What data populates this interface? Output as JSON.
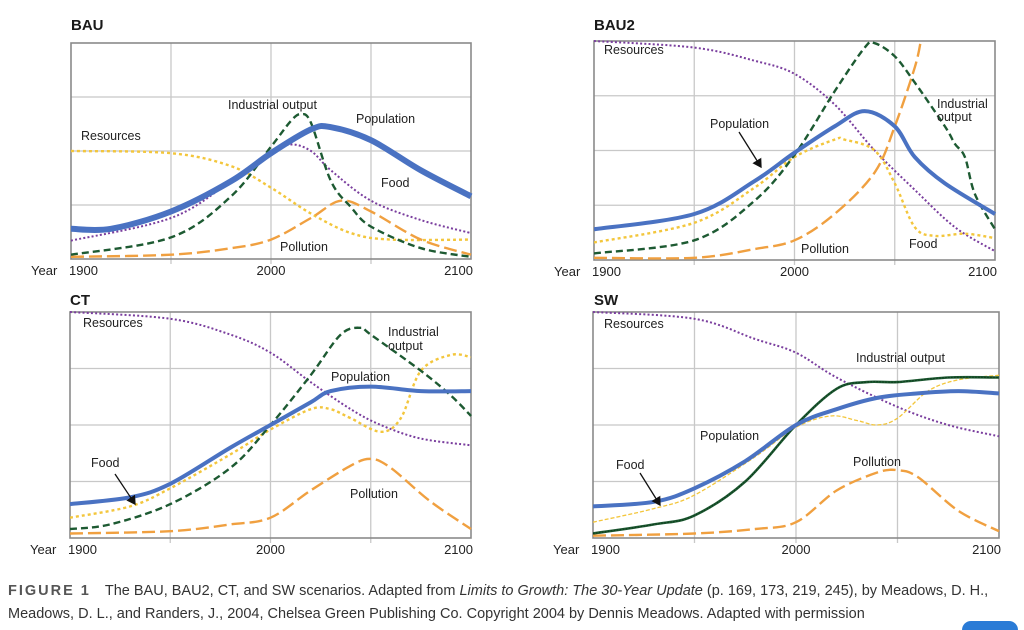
{
  "colors": {
    "population": "#4a72c2",
    "industrial_output": "#1d5a32",
    "food": "#f3c63c",
    "resources": "#7a3e9e",
    "pollution": "#f0a040",
    "grid": "#c8c8c8",
    "frame": "#8a8a8a"
  },
  "axis": {
    "year_label": "Year",
    "x_ticks": [
      "1900",
      "2000",
      "2100"
    ]
  },
  "chart_data": [
    {
      "type": "line",
      "title": "BAU",
      "xlabel": "Year",
      "ylabel": "",
      "xlim": [
        1900,
        2100
      ],
      "ylim": [
        0,
        1
      ],
      "grid": true,
      "x_ticks": [
        1900,
        2000,
        2100
      ],
      "annotations": {
        "industrial": "Industrial output",
        "population": "Population",
        "resources": "Resources",
        "food": "Food",
        "pollution": "Pollution"
      },
      "series": [
        {
          "name": "population",
          "x": [
            1900,
            1920,
            1950,
            1980,
            2000,
            2020,
            2030,
            2050,
            2075,
            2100
          ],
          "y": [
            0.14,
            0.14,
            0.22,
            0.36,
            0.49,
            0.6,
            0.61,
            0.55,
            0.41,
            0.29
          ]
        },
        {
          "name": "resources",
          "x": [
            1900,
            1950,
            1980,
            2000,
            2010,
            2020,
            2030,
            2050,
            2075,
            2100
          ],
          "y": [
            0.085,
            0.19,
            0.36,
            0.49,
            0.53,
            0.5,
            0.41,
            0.27,
            0.18,
            0.12
          ]
        },
        {
          "name": "food",
          "x": [
            1900,
            1950,
            1980,
            2000,
            2020,
            2040,
            2060,
            2100
          ],
          "y": [
            0.5,
            0.49,
            0.43,
            0.33,
            0.21,
            0.12,
            0.09,
            0.09
          ]
        },
        {
          "name": "industrial_output",
          "x": [
            1900,
            1950,
            1980,
            2000,
            2010,
            2015,
            2020,
            2030,
            2040,
            2050,
            2075,
            2100
          ],
          "y": [
            0.02,
            0.1,
            0.29,
            0.52,
            0.64,
            0.67,
            0.63,
            0.36,
            0.24,
            0.15,
            0.05,
            0.01
          ]
        },
        {
          "name": "pollution",
          "x": [
            1900,
            1950,
            1980,
            2000,
            2020,
            2035,
            2050,
            2075,
            2100
          ],
          "y": [
            0.01,
            0.02,
            0.05,
            0.09,
            0.19,
            0.27,
            0.22,
            0.09,
            0.02
          ]
        }
      ]
    },
    {
      "type": "line",
      "title": "BAU2",
      "xlabel": "Year",
      "ylabel": "",
      "xlim": [
        1900,
        2100
      ],
      "ylim": [
        0,
        1
      ],
      "grid": true,
      "x_ticks": [
        1900,
        2000,
        2100
      ],
      "annotations": {
        "resources": "Resources",
        "population": "Population",
        "industrial_1": "Industrial",
        "industrial_2": "output",
        "pollution": "Pollution",
        "food": "Food"
      },
      "series": [
        {
          "name": "population",
          "x": [
            1900,
            1950,
            1980,
            2000,
            2020,
            2035,
            2050,
            2060,
            2075,
            2100
          ],
          "y": [
            0.14,
            0.21,
            0.36,
            0.49,
            0.61,
            0.68,
            0.61,
            0.47,
            0.35,
            0.21
          ]
        },
        {
          "name": "resources",
          "x": [
            1900,
            1950,
            1980,
            2000,
            2020,
            2040,
            2060,
            2080,
            2100
          ],
          "y": [
            1.0,
            0.97,
            0.91,
            0.85,
            0.71,
            0.5,
            0.32,
            0.15,
            0.04
          ]
        },
        {
          "name": "food",
          "x": [
            1900,
            1950,
            1980,
            2000,
            2020,
            2025,
            2040,
            2050,
            2060,
            2070,
            2085,
            2100
          ],
          "y": [
            0.08,
            0.17,
            0.33,
            0.47,
            0.55,
            0.55,
            0.5,
            0.35,
            0.15,
            0.11,
            0.12,
            0.1
          ]
        },
        {
          "name": "industrial_output",
          "x": [
            1900,
            1950,
            1980,
            2000,
            2020,
            2035,
            2040,
            2050,
            2060,
            2075,
            2080,
            2085,
            2090,
            2100
          ],
          "y": [
            0.03,
            0.09,
            0.27,
            0.48,
            0.77,
            0.97,
            0.99,
            0.93,
            0.81,
            0.61,
            0.53,
            0.47,
            0.3,
            0.14
          ]
        },
        {
          "name": "pollution",
          "x": [
            1900,
            1950,
            1980,
            2000,
            2020,
            2040,
            2050,
            2060,
            2063
          ],
          "y": [
            0.01,
            0.01,
            0.05,
            0.09,
            0.21,
            0.4,
            0.61,
            0.88,
            1.0
          ]
        }
      ]
    },
    {
      "type": "line",
      "title": "CT",
      "xlabel": "Year",
      "ylabel": "",
      "xlim": [
        1900,
        2100
      ],
      "ylim": [
        0,
        1
      ],
      "grid": true,
      "x_ticks": [
        1900,
        2000,
        2100
      ],
      "annotations": {
        "resources": "Resources",
        "industrial_1": "Industrial",
        "industrial_2": "output",
        "population": "Population",
        "food": "Food",
        "pollution": "Pollution"
      },
      "series": [
        {
          "name": "population",
          "x": [
            1900,
            1930,
            1950,
            1980,
            2000,
            2020,
            2030,
            2050,
            2075,
            2100
          ],
          "y": [
            0.15,
            0.18,
            0.24,
            0.4,
            0.5,
            0.6,
            0.65,
            0.67,
            0.65,
            0.65
          ]
        },
        {
          "name": "food",
          "x": [
            1900,
            1930,
            1950,
            1980,
            2000,
            2020,
            2030,
            2040,
            2055,
            2065,
            2075,
            2090,
            2100
          ],
          "y": [
            0.09,
            0.14,
            0.22,
            0.37,
            0.48,
            0.57,
            0.57,
            0.53,
            0.47,
            0.53,
            0.74,
            0.81,
            0.8
          ]
        },
        {
          "name": "industrial_output",
          "x": [
            1900,
            1920,
            1950,
            1980,
            2000,
            2020,
            2035,
            2045,
            2050,
            2075,
            2090,
            2100
          ],
          "y": [
            0.04,
            0.06,
            0.15,
            0.31,
            0.5,
            0.72,
            0.9,
            0.93,
            0.9,
            0.74,
            0.63,
            0.54
          ]
        },
        {
          "name": "resources",
          "x": [
            1900,
            1950,
            1980,
            2000,
            2020,
            2040,
            2055,
            2075,
            2100
          ],
          "y": [
            1.0,
            0.97,
            0.9,
            0.82,
            0.69,
            0.57,
            0.5,
            0.44,
            0.41
          ]
        },
        {
          "name": "pollution",
          "x": [
            1900,
            1950,
            1980,
            2000,
            2020,
            2040,
            2050,
            2060,
            2080,
            2100
          ],
          "y": [
            0.02,
            0.03,
            0.06,
            0.09,
            0.21,
            0.32,
            0.35,
            0.31,
            0.16,
            0.04
          ]
        }
      ]
    },
    {
      "type": "line",
      "title": "SW",
      "xlabel": "Year",
      "ylabel": "",
      "xlim": [
        1900,
        2100
      ],
      "ylim": [
        0,
        1
      ],
      "grid": true,
      "x_ticks": [
        1900,
        2000,
        2100
      ],
      "annotations": {
        "resources": "Resources",
        "industrial": "Industrial output",
        "population": "Population",
        "food": "Food",
        "pollution": "Pollution"
      },
      "series": [
        {
          "name": "population",
          "x": [
            1900,
            1930,
            1950,
            1975,
            2000,
            2020,
            2040,
            2060,
            2080,
            2100
          ],
          "y": [
            0.14,
            0.16,
            0.22,
            0.34,
            0.5,
            0.57,
            0.62,
            0.64,
            0.65,
            0.64
          ]
        },
        {
          "name": "food",
          "x": [
            1900,
            1930,
            1950,
            1980,
            2000,
            2017,
            2030,
            2040,
            2050,
            2065,
            2080,
            2100
          ],
          "y": [
            0.07,
            0.13,
            0.19,
            0.36,
            0.49,
            0.54,
            0.52,
            0.5,
            0.53,
            0.65,
            0.7,
            0.72
          ]
        },
        {
          "name": "industrial_output",
          "x": [
            1900,
            1930,
            1950,
            1975,
            2000,
            2020,
            2035,
            2050,
            2075,
            2100
          ],
          "y": [
            0.02,
            0.06,
            0.1,
            0.25,
            0.5,
            0.66,
            0.69,
            0.69,
            0.71,
            0.71
          ]
        },
        {
          "name": "resources",
          "x": [
            1900,
            1950,
            1980,
            2000,
            2020,
            2050,
            2075,
            2100
          ],
          "y": [
            1.0,
            0.97,
            0.88,
            0.82,
            0.71,
            0.58,
            0.5,
            0.45
          ]
        },
        {
          "name": "pollution",
          "x": [
            1900,
            1950,
            1980,
            2000,
            2020,
            2040,
            2050,
            2060,
            2080,
            2100
          ],
          "y": [
            0.01,
            0.02,
            0.04,
            0.07,
            0.21,
            0.29,
            0.3,
            0.27,
            0.12,
            0.03
          ]
        }
      ]
    }
  ],
  "caption": {
    "figure_label": "FIGURE 1",
    "text_1": "The BAU, BAU2, CT, and SW scenarios. Adapted from ",
    "book_title": "Limits to Growth: The 30-Year Update",
    "text_2": " (p. 169, 173, 219, 245), by Meadows, D. H., Meadows, D. L., and Randers, J., 2004, Chelsea Green Publishing Co. Copyright 2004 by Dennis Meadows. Adapted with permission"
  }
}
